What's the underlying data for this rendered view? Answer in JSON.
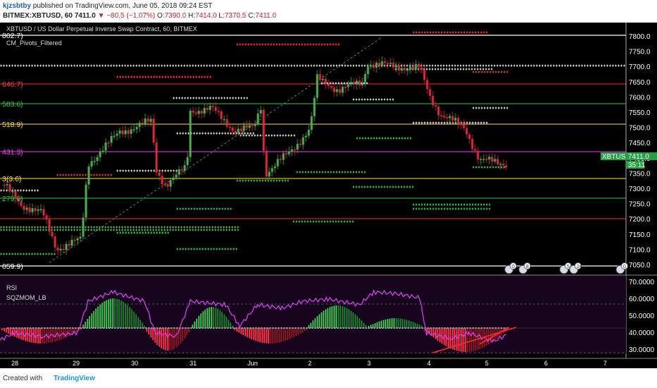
{
  "header": {
    "user": "kjzsbtby",
    "published": "published on TradingView.com, June 05, 2018 09:24 EST",
    "symbol": "BITMEX:XBTUSD, 60",
    "last": "7411.0",
    "change": "▼ −80.5 (−1.07%)",
    "open_label": "O:",
    "open": "7390.0",
    "high_label": "H:",
    "high": "7414.0",
    "low_label": "L:",
    "low": "7370.5",
    "close_label": "C:",
    "close": "7411.0"
  },
  "chart": {
    "title": "XBTUSD / US Dollar Perpetual Inverse Swap Contract, 60, BITMEX",
    "indicator": "CM_Pivots_Filtered",
    "price_ticks": [
      "7800.0",
      "7750.0",
      "7700.0",
      "7650.0",
      "7600.0",
      "7550.0",
      "7500.0",
      "7450.0",
      "7400.0",
      "7350.0",
      "7300.0",
      "7250.0",
      "7200.0",
      "7150.0",
      "7100.0",
      "7050.0"
    ],
    "pivot_labels": [
      {
        "text": "802.7)",
        "color": "#ffffff"
      },
      {
        "text": "646.7)",
        "color": "#ff4040"
      },
      {
        "text": "583.6)",
        "color": "#33cc33"
      },
      {
        "text": "518.9)",
        "color": "#ffe033"
      },
      {
        "text": "431.3)",
        "color": "#ff33ff"
      },
      {
        "text": "3(3.6)",
        "color": "#ffe033"
      },
      {
        "text": "279.0)",
        "color": "#33cc33"
      },
      {
        "text": "059.9)",
        "color": "#ffffff"
      }
    ],
    "current_symbol": "XBTUSD",
    "current_price": "7411.0",
    "countdown": "35:11",
    "events": [
      "0",
      "8",
      "51",
      "24",
      "0"
    ],
    "colors": {
      "bull": "#4caf50",
      "bear": "#e0283c",
      "rsi": "#e040fb",
      "background": "#000000"
    }
  },
  "indicator_panel": {
    "rsi_label": "RSI",
    "sqz_label": "SQZMOM_LB",
    "ticks": [
      "70.0000",
      "60.0000",
      "50.0000",
      "40.0000",
      "30.0000"
    ]
  },
  "time_axis": [
    "28",
    "29",
    "30",
    "31",
    "Jun",
    "2",
    "3",
    "4",
    "5",
    "6",
    "7"
  ],
  "footer": {
    "created": "Created with",
    "brand": "TradingView"
  }
}
